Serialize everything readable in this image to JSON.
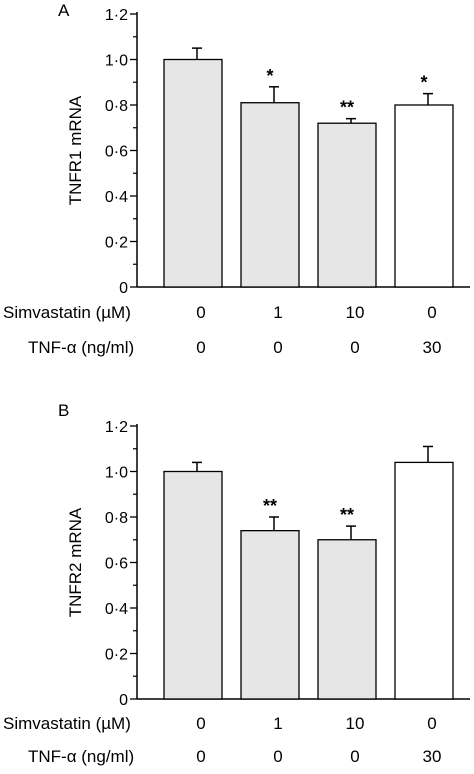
{
  "chart_data": [
    {
      "type": "bar",
      "panel_label": "A",
      "ylabel": "TNFR1 mRNA",
      "ylim": [
        0,
        1.2
      ],
      "y_ticks": [
        "0",
        "0·2",
        "0·4",
        "0·6",
        "0·8",
        "1·0",
        "1·2"
      ],
      "bar_fill": "#e6e6e6",
      "bar_fill_tnf": "#ffffff",
      "values": [
        1.0,
        0.81,
        0.72,
        0.8
      ],
      "error": [
        0.05,
        0.07,
        0.02,
        0.05
      ],
      "significance": [
        "",
        "*",
        "**",
        "*"
      ],
      "row_labels": [
        "Simvastatin (µM)",
        "TNF-α (ng/ml)"
      ],
      "rows": [
        [
          "0",
          "1",
          "10",
          "0"
        ],
        [
          "0",
          "0",
          "0",
          "30"
        ]
      ]
    },
    {
      "type": "bar",
      "panel_label": "B",
      "ylabel": "TNFR2 mRNA",
      "ylim": [
        0,
        1.2
      ],
      "y_ticks": [
        "0",
        "0·2",
        "0·4",
        "0·6",
        "0·8",
        "1·0",
        "1·2"
      ],
      "bar_fill": "#e6e6e6",
      "bar_fill_tnf": "#ffffff",
      "values": [
        1.0,
        0.74,
        0.7,
        1.04
      ],
      "error": [
        0.04,
        0.06,
        0.06,
        0.07
      ],
      "significance": [
        "",
        "**",
        "**",
        ""
      ],
      "row_labels": [
        "Simvastatin (µM)",
        "TNF-α (ng/ml)"
      ],
      "rows": [
        [
          "0",
          "1",
          "10",
          "0"
        ],
        [
          "0",
          "0",
          "0",
          "30"
        ]
      ]
    }
  ]
}
